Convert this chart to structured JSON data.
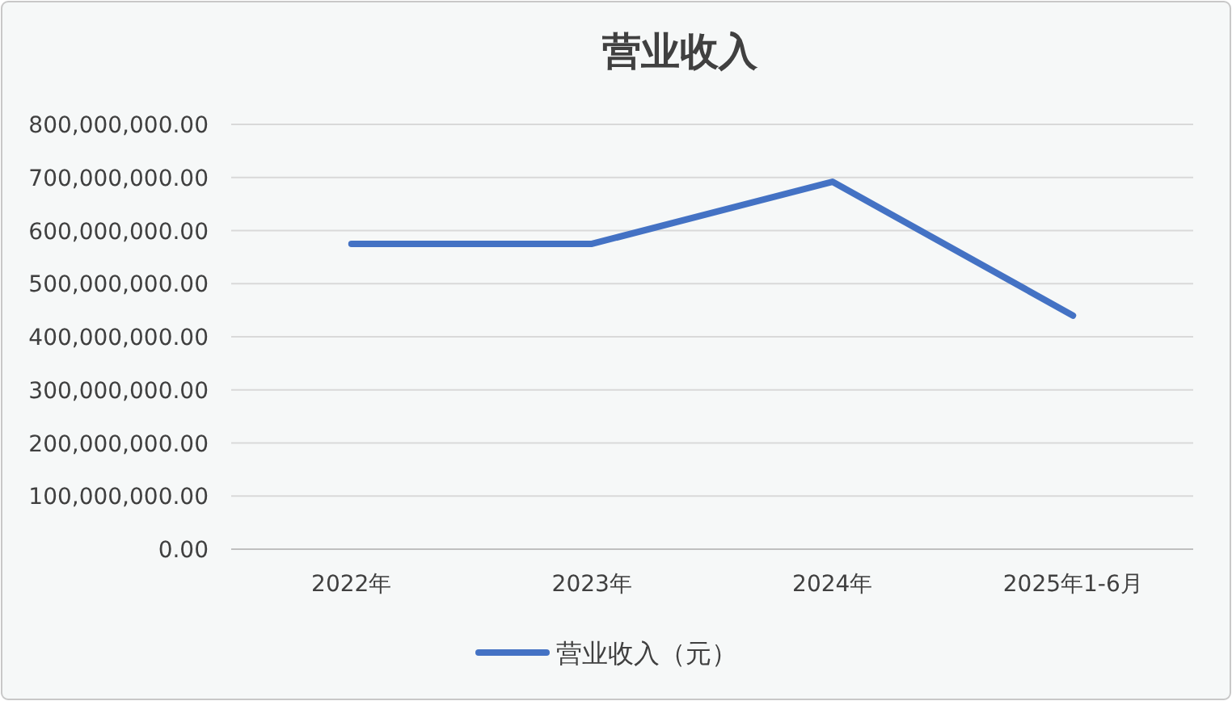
{
  "chart_data": {
    "type": "line",
    "title": "营业收入",
    "categories": [
      "2022年",
      "2023年",
      "2024年",
      "2025年1-6月"
    ],
    "series": [
      {
        "name": "营业收入（元）",
        "color": "#4472c4",
        "values": [
          575000000,
          575000000,
          692000000,
          440000000
        ]
      }
    ],
    "ylim": [
      0,
      800000000
    ],
    "yticks": [
      {
        "value": 0,
        "label": "0.00"
      },
      {
        "value": 100000000,
        "label": "100,000,000.00"
      },
      {
        "value": 200000000,
        "label": "200,000,000.00"
      },
      {
        "value": 300000000,
        "label": "300,000,000.00"
      },
      {
        "value": 400000000,
        "label": "400,000,000.00"
      },
      {
        "value": 500000000,
        "label": "500,000,000.00"
      },
      {
        "value": 600000000,
        "label": "600,000,000.00"
      },
      {
        "value": 700000000,
        "label": "700,000,000.00"
      },
      {
        "value": 800000000,
        "label": "800,000,000.00"
      }
    ],
    "grid": "y",
    "legend": "bottom",
    "marker": "none",
    "line_style": "solid"
  }
}
